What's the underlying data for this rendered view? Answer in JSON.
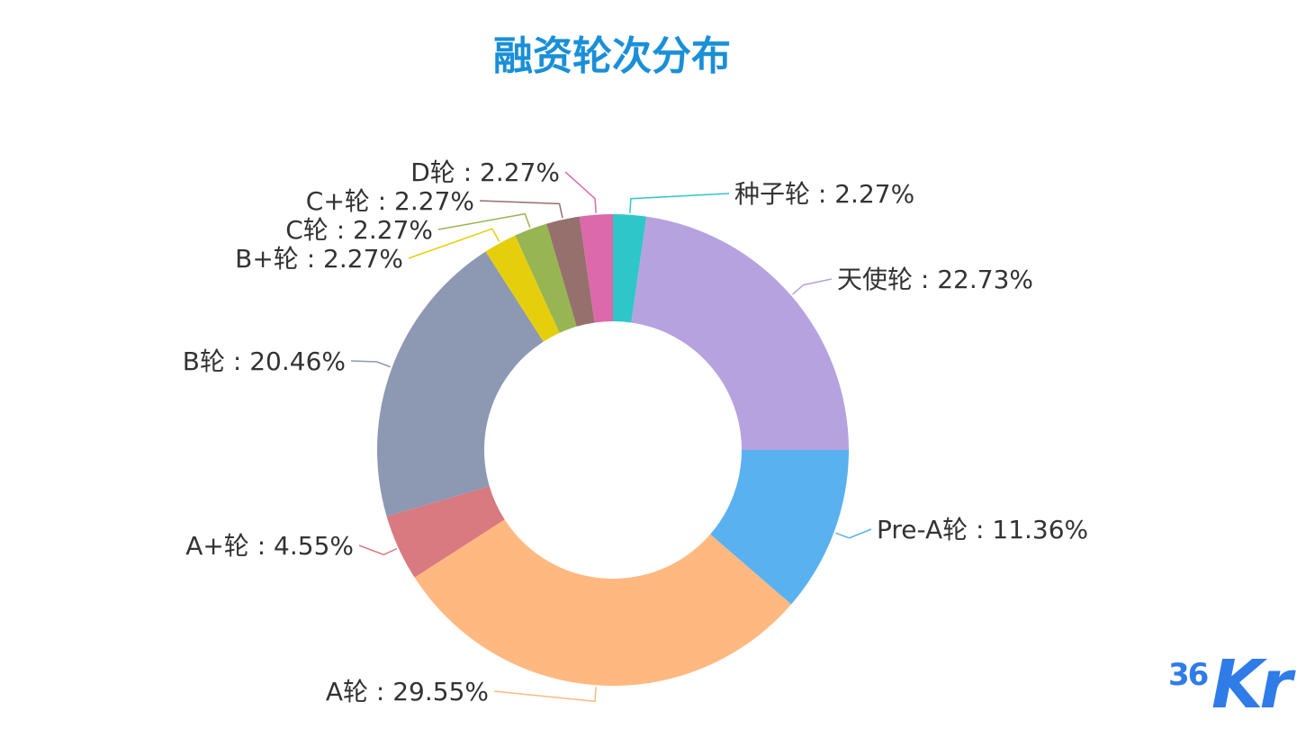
{
  "chart_data": {
    "type": "pie",
    "variant": "donut",
    "title": "融资轮次分布",
    "label_separator": " : ",
    "slices": [
      {
        "name": "种子轮",
        "value": 2.27,
        "label": "2.27%",
        "color": "#2ec7c9"
      },
      {
        "name": "天使轮",
        "value": 22.73,
        "label": "22.73%",
        "color": "#b6a2de"
      },
      {
        "name": "Pre-A轮",
        "value": 11.36,
        "label": "11.36%",
        "color": "#5ab1ef"
      },
      {
        "name": "A轮",
        "value": 29.55,
        "label": "29.55%",
        "color": "#ffb980"
      },
      {
        "name": "A+轮",
        "value": 4.55,
        "label": "4.55%",
        "color": "#d87a80"
      },
      {
        "name": "B轮",
        "value": 20.46,
        "label": "20.46%",
        "color": "#8d98b3"
      },
      {
        "name": "B+轮",
        "value": 2.27,
        "label": "2.27%",
        "color": "#e5cf0d"
      },
      {
        "name": "C轮",
        "value": 2.27,
        "label": "2.27%",
        "color": "#97b552"
      },
      {
        "name": "C+轮",
        "value": 2.27,
        "label": "2.27%",
        "color": "#95706d"
      },
      {
        "name": "D轮",
        "value": 2.27,
        "label": "2.27%",
        "color": "#dc69aa"
      }
    ]
  },
  "logo": {
    "part1": "36",
    "part2": "Kr",
    "color": "#2f7be8"
  }
}
